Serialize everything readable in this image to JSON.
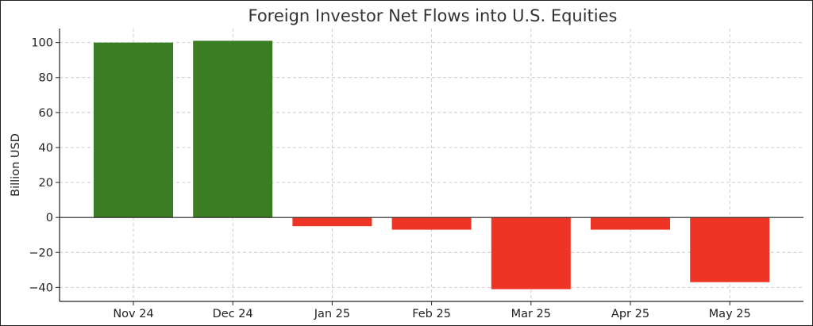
{
  "chart_data": {
    "type": "bar",
    "title": "Foreign Investor Net Flows into U.S. Equities",
    "xlabel": "",
    "ylabel": "Billion USD",
    "categories": [
      "Nov 24",
      "Dec 24",
      "Jan 25",
      "Feb 25",
      "Mar 25",
      "Apr 25",
      "May 25"
    ],
    "values": [
      100,
      101,
      -5,
      -7,
      -41,
      -7,
      -37
    ],
    "ylim": [
      -48,
      108
    ],
    "yticks": [
      -40,
      -20,
      0,
      20,
      40,
      60,
      80,
      100
    ],
    "ytick_labels": [
      "−40",
      "−20",
      "0",
      "20",
      "40",
      "60",
      "80",
      "100"
    ],
    "grid": true,
    "colors": {
      "positive": "#3a7d22",
      "negative": "#ee3424"
    }
  }
}
